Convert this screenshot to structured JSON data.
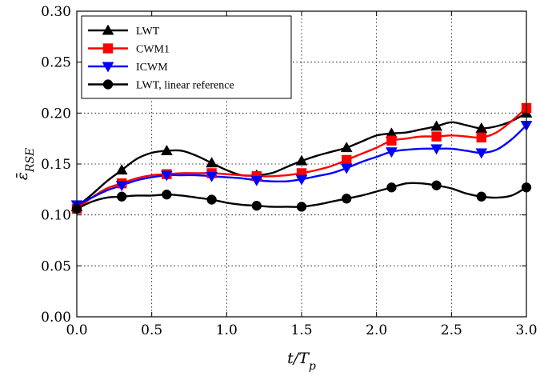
{
  "chart_data": {
    "type": "line",
    "xlabel": "t/T_p",
    "ylabel": "ε̄_RSE",
    "xlim": [
      0.0,
      3.0
    ],
    "ylim": [
      0.0,
      0.3
    ],
    "xticks": [
      "0.0",
      "0.5",
      "1.0",
      "1.5",
      "2.0",
      "2.5",
      "3.0"
    ],
    "yticks": [
      "0.00",
      "0.05",
      "0.10",
      "0.15",
      "0.20",
      "0.25",
      "0.30"
    ],
    "grid": true,
    "legend_position": "top-left",
    "series": [
      {
        "name": "LWT",
        "color": "#000000",
        "marker": "triangle-up",
        "x": [
          0.0,
          0.1,
          0.2,
          0.3,
          0.4,
          0.5,
          0.6,
          0.7,
          0.8,
          0.9,
          1.0,
          1.1,
          1.2,
          1.3,
          1.4,
          1.5,
          1.6,
          1.7,
          1.8,
          1.9,
          2.0,
          2.1,
          2.2,
          2.3,
          2.4,
          2.5,
          2.6,
          2.7,
          2.8,
          2.9,
          3.0
        ],
        "y": [
          0.108,
          0.12,
          0.133,
          0.144,
          0.155,
          0.161,
          0.163,
          0.163,
          0.158,
          0.151,
          0.144,
          0.139,
          0.139,
          0.141,
          0.147,
          0.153,
          0.158,
          0.162,
          0.166,
          0.172,
          0.178,
          0.18,
          0.181,
          0.184,
          0.187,
          0.191,
          0.188,
          0.185,
          0.187,
          0.192,
          0.2
        ],
        "marker_x": [
          0.0,
          0.3,
          0.6,
          0.9,
          1.2,
          1.5,
          1.8,
          2.1,
          2.4,
          2.7,
          3.0
        ]
      },
      {
        "name": "CWM1",
        "color": "#ff0000",
        "marker": "square",
        "x": [
          0.0,
          0.1,
          0.2,
          0.3,
          0.4,
          0.5,
          0.6,
          0.7,
          0.8,
          0.9,
          1.0,
          1.1,
          1.2,
          1.3,
          1.4,
          1.5,
          1.6,
          1.7,
          1.8,
          1.9,
          2.0,
          2.1,
          2.2,
          2.3,
          2.4,
          2.5,
          2.6,
          2.7,
          2.8,
          2.9,
          3.0
        ],
        "y": [
          0.106,
          0.117,
          0.126,
          0.131,
          0.136,
          0.139,
          0.14,
          0.141,
          0.141,
          0.141,
          0.14,
          0.139,
          0.138,
          0.138,
          0.139,
          0.141,
          0.144,
          0.148,
          0.154,
          0.16,
          0.166,
          0.173,
          0.175,
          0.177,
          0.177,
          0.178,
          0.177,
          0.176,
          0.181,
          0.192,
          0.205
        ],
        "marker_x": [
          0.0,
          0.3,
          0.6,
          0.9,
          1.2,
          1.5,
          1.8,
          2.1,
          2.4,
          2.7,
          3.0
        ]
      },
      {
        "name": "ICWM",
        "color": "#0000ff",
        "marker": "triangle-down",
        "x": [
          0.0,
          0.1,
          0.2,
          0.3,
          0.4,
          0.5,
          0.6,
          0.7,
          0.8,
          0.9,
          1.0,
          1.1,
          1.2,
          1.3,
          1.4,
          1.5,
          1.6,
          1.7,
          1.8,
          1.9,
          2.0,
          2.1,
          2.2,
          2.3,
          2.4,
          2.5,
          2.6,
          2.7,
          2.8,
          2.9,
          3.0
        ],
        "y": [
          0.11,
          0.117,
          0.124,
          0.129,
          0.134,
          0.137,
          0.139,
          0.139,
          0.139,
          0.138,
          0.137,
          0.136,
          0.134,
          0.133,
          0.133,
          0.135,
          0.138,
          0.141,
          0.146,
          0.152,
          0.157,
          0.162,
          0.164,
          0.165,
          0.165,
          0.165,
          0.163,
          0.161,
          0.164,
          0.174,
          0.188
        ],
        "marker_x": [
          0.0,
          0.3,
          0.6,
          0.9,
          1.2,
          1.5,
          1.8,
          2.1,
          2.4,
          2.7,
          3.0
        ]
      },
      {
        "name": "LWT, linear reference",
        "color": "#000000",
        "marker": "circle",
        "x": [
          0.0,
          0.1,
          0.2,
          0.3,
          0.4,
          0.5,
          0.6,
          0.7,
          0.8,
          0.9,
          1.0,
          1.1,
          1.2,
          1.3,
          1.4,
          1.5,
          1.6,
          1.7,
          1.8,
          1.9,
          2.0,
          2.1,
          2.2,
          2.3,
          2.4,
          2.5,
          2.6,
          2.7,
          2.8,
          2.9,
          3.0
        ],
        "y": [
          0.106,
          0.113,
          0.117,
          0.118,
          0.119,
          0.119,
          0.12,
          0.119,
          0.117,
          0.115,
          0.112,
          0.11,
          0.109,
          0.108,
          0.108,
          0.108,
          0.11,
          0.113,
          0.116,
          0.119,
          0.123,
          0.127,
          0.131,
          0.131,
          0.129,
          0.126,
          0.121,
          0.118,
          0.117,
          0.119,
          0.127
        ],
        "marker_x": [
          0.0,
          0.3,
          0.6,
          0.9,
          1.2,
          1.5,
          1.8,
          2.1,
          2.4,
          2.7,
          3.0
        ]
      }
    ]
  }
}
